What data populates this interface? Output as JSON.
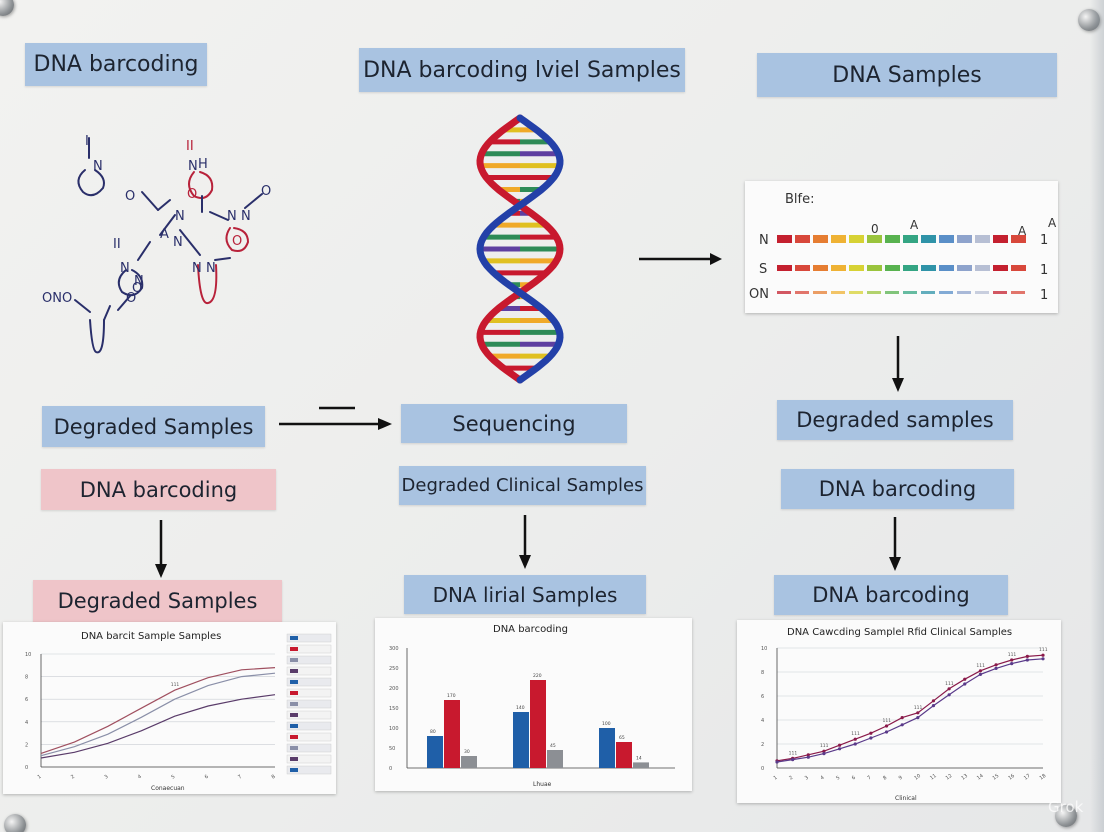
{
  "boxes": {
    "top_left": "DNA barcoding",
    "top_center": "DNA barcoding lviel Samples",
    "top_right": "DNA Samples",
    "mid_left": "Degraded Samples",
    "mid_center": "Sequencing",
    "mid_right": "Degraded samples",
    "row3_left": "DNA barcoding",
    "row3_center": "Degraded Clinical Samples",
    "row3_right": "DNA barcoding",
    "row4_left": "Degraded Samples",
    "row4_center": "DNA lirial Samples",
    "row4_right": "DNA barcoding"
  },
  "molecule": {
    "labels": [
      "I",
      "N",
      "O",
      "II",
      "H",
      "N",
      "O",
      "O",
      "N",
      "N",
      "O",
      "N",
      "A",
      "N",
      "II",
      "N",
      "N",
      "N",
      "O",
      "O",
      "N",
      "ONO"
    ]
  },
  "barcode_panel": {
    "title": "Blfe:",
    "peak_labels": [
      "0",
      "A",
      "A",
      "A"
    ],
    "rows": [
      {
        "label": "N",
        "value": "1"
      },
      {
        "label": "S",
        "value": "1"
      },
      {
        "label": "ON",
        "value": "1"
      }
    ],
    "colors": [
      "#c4202f",
      "#d8483b",
      "#e67d32",
      "#efb234",
      "#d7d234",
      "#9ac43d",
      "#58b24f",
      "#34a583",
      "#2f93a8",
      "#5a8fc8",
      "#8ea3cc",
      "#b7bfd4"
    ]
  },
  "charts": {
    "left": {
      "title": "DNA barcit Sample Samples",
      "xlabel": "Conaecuan",
      "point_label": "111"
    },
    "center": {
      "title": "DNA barcoding",
      "xlabel": "Lhuae"
    },
    "right": {
      "title": "DNA Cawcding Samplel Rfid Clinical Samples",
      "xlabel": "Clinical",
      "point_label": "111"
    }
  },
  "chart_data": [
    {
      "type": "line",
      "title": "DNA barcit Sample Samples",
      "xlabel": "Conaecuan",
      "ylabel": "",
      "x": [
        1,
        2,
        3,
        4,
        5,
        6,
        7,
        8
      ],
      "ylim": [
        0,
        10
      ],
      "grid": true,
      "legend": "right",
      "series": [
        {
          "values": [
            1.2,
            2.2,
            3.6,
            5.2,
            6.8,
            7.9,
            8.6,
            8.8
          ]
        },
        {
          "values": [
            1.0,
            1.8,
            2.9,
            4.4,
            6.0,
            7.2,
            8.0,
            8.3
          ]
        },
        {
          "values": [
            0.8,
            1.3,
            2.1,
            3.2,
            4.5,
            5.4,
            6.0,
            6.4
          ]
        }
      ]
    },
    {
      "type": "bar",
      "title": "DNA barcoding",
      "xlabel": "Lhuae",
      "ylabel": "",
      "ylim": [
        0,
        300
      ],
      "categories": [
        "",
        "",
        ""
      ],
      "series": [
        {
          "values": [
            80,
            140,
            100
          ],
          "color": "#1f5fa8"
        },
        {
          "values": [
            170,
            220,
            65
          ],
          "color": "#c8192e"
        },
        {
          "values": [
            30,
            45,
            14
          ],
          "color": "#8c8f94"
        }
      ]
    },
    {
      "type": "line",
      "title": "DNA Cawcding Samplel Rfid Clinical Samples",
      "xlabel": "Clinical",
      "ylabel": "",
      "x": [
        1,
        2,
        3,
        4,
        5,
        6,
        7,
        8,
        9,
        10,
        11,
        12,
        13,
        14,
        15,
        16,
        17,
        18
      ],
      "ylim": [
        0,
        10
      ],
      "grid": true,
      "series": [
        {
          "values": [
            0.6,
            0.8,
            1.1,
            1.4,
            1.9,
            2.4,
            2.9,
            3.5,
            4.2,
            4.6,
            5.6,
            6.6,
            7.4,
            8.1,
            8.6,
            9.0,
            9.3,
            9.4
          ],
          "color": "#8a1a4a"
        },
        {
          "values": [
            0.5,
            0.7,
            0.9,
            1.2,
            1.6,
            2.0,
            2.5,
            3.0,
            3.6,
            4.2,
            5.2,
            6.1,
            7.0,
            7.8,
            8.3,
            8.7,
            9.0,
            9.1
          ],
          "color": "#5a3a8a"
        }
      ]
    }
  ],
  "watermark": "Grok",
  "colors": {
    "box_blue": "#a9c3e1",
    "box_pink": "#efc5c9",
    "helix_blue": "#2340a8",
    "helix_red": "#c8192e"
  }
}
